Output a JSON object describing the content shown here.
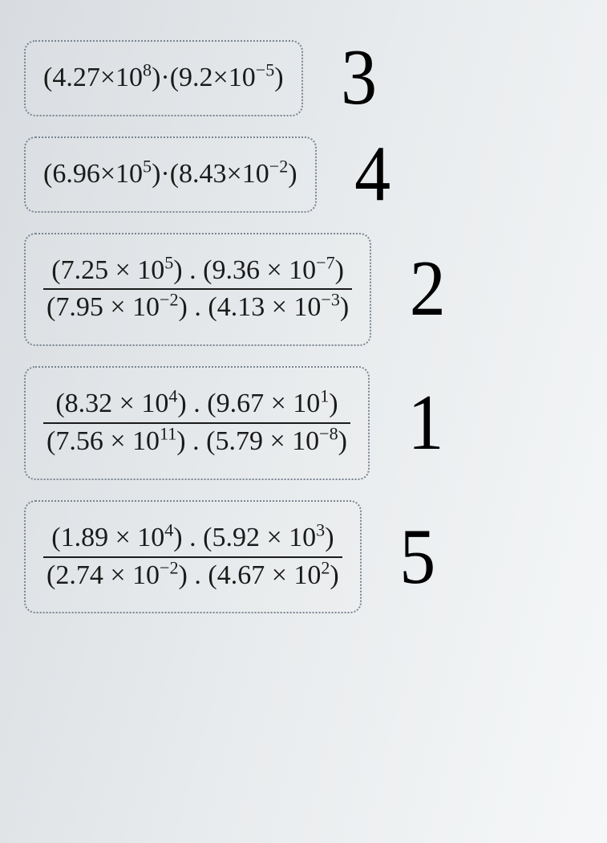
{
  "colors": {
    "box_border": "#7a8490",
    "text": "#1a1a1a",
    "handwritten": "#000000",
    "bg_grad_start": "#d8dce0",
    "bg_grad_end": "#f5f7f8"
  },
  "typography": {
    "expr_font": "Times New Roman",
    "expr_size_pt": 26,
    "handwritten_font": "Comic Sans MS",
    "handwritten_size_pt": 68
  },
  "problems": [
    {
      "type": "product",
      "terms": [
        {
          "coef": "4.27",
          "exp": "8"
        },
        {
          "coef": "9.2",
          "exp": "−5"
        }
      ],
      "annotation": "3"
    },
    {
      "type": "product",
      "terms": [
        {
          "coef": "6.96",
          "exp": "5"
        },
        {
          "coef": "8.43",
          "exp": "−2"
        }
      ],
      "annotation": "4"
    },
    {
      "type": "fraction",
      "numerator": [
        {
          "coef": "7.25",
          "exp": "5"
        },
        {
          "coef": "9.36",
          "exp": "−7"
        }
      ],
      "denominator": [
        {
          "coef": "7.95",
          "exp": "−2"
        },
        {
          "coef": "4.13",
          "exp": "−3"
        }
      ],
      "annotation": "2"
    },
    {
      "type": "fraction",
      "numerator": [
        {
          "coef": "8.32",
          "exp": "4"
        },
        {
          "coef": "9.67",
          "exp": "1"
        }
      ],
      "denominator": [
        {
          "coef": "7.56",
          "exp": "11"
        },
        {
          "coef": "5.79",
          "exp": "−8"
        }
      ],
      "annotation": "1"
    },
    {
      "type": "fraction",
      "numerator": [
        {
          "coef": "1.89",
          "exp": "4"
        },
        {
          "coef": "5.92",
          "exp": "3"
        }
      ],
      "denominator": [
        {
          "coef": "2.74",
          "exp": "−2"
        },
        {
          "coef": "4.67",
          "exp": "2"
        }
      ],
      "annotation": "5"
    }
  ],
  "layout": {
    "box_border_style": "dotted",
    "box_border_radius": 14,
    "row_gap": 25,
    "box_count": 5
  },
  "operators": {
    "middle_dot": "·",
    "space_dot": " . ",
    "times": "×"
  }
}
